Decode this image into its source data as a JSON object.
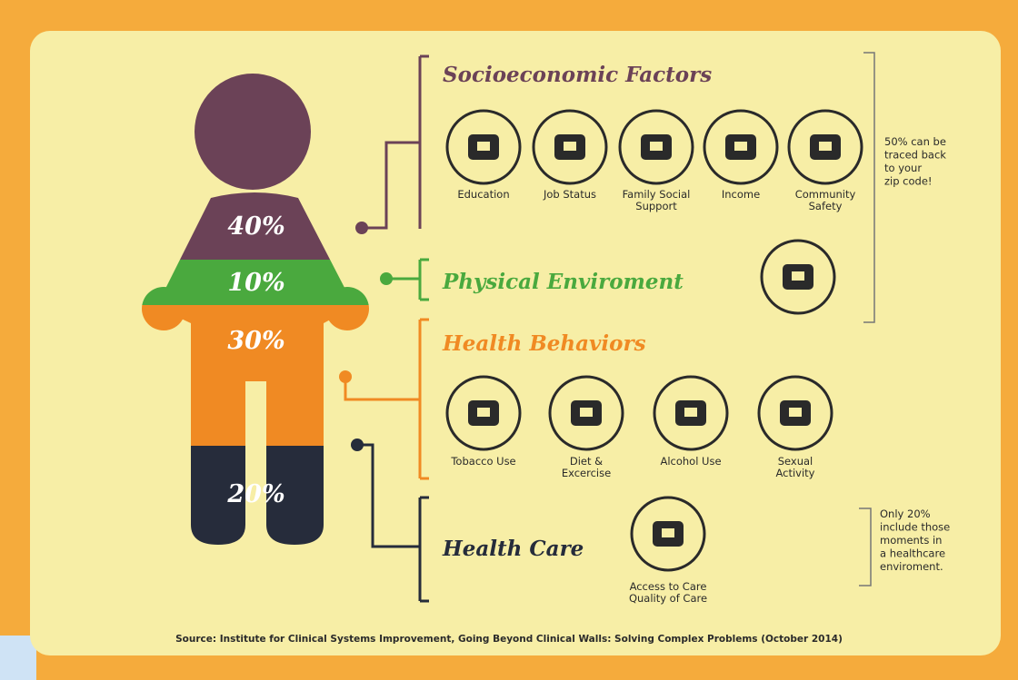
{
  "figure": {
    "segments": [
      "40%",
      "10%",
      "30%",
      "20%"
    ]
  },
  "sections": [
    {
      "title": "Socioeconomic Factors",
      "items": [
        [
          "Education"
        ],
        [
          "Job Status"
        ],
        [
          "Family Social",
          "Support"
        ],
        [
          "Income"
        ],
        [
          "Community",
          "Safety"
        ]
      ]
    },
    {
      "title": "Physical Enviroment",
      "items": []
    },
    {
      "title": "Health Behaviors",
      "items": [
        [
          "Tobacco Use"
        ],
        [
          "Diet &",
          "Excercise"
        ],
        [
          "Alcohol Use"
        ],
        [
          "Sexual",
          "Activity"
        ]
      ]
    },
    {
      "title": "Health Care",
      "items": [
        [
          "Access to Care",
          "Quality of Care"
        ]
      ]
    }
  ],
  "notes": [
    [
      "50% can be",
      "traced back",
      "to your",
      "zip code!"
    ],
    [
      "Only 20%",
      "include those",
      "moments in",
      "a healthcare",
      "enviroment."
    ]
  ],
  "source": "Source: Institute for Clinical Systems Improvement, Going Beyond Clinical Walls: Solving Complex Problems (October 2014)"
}
